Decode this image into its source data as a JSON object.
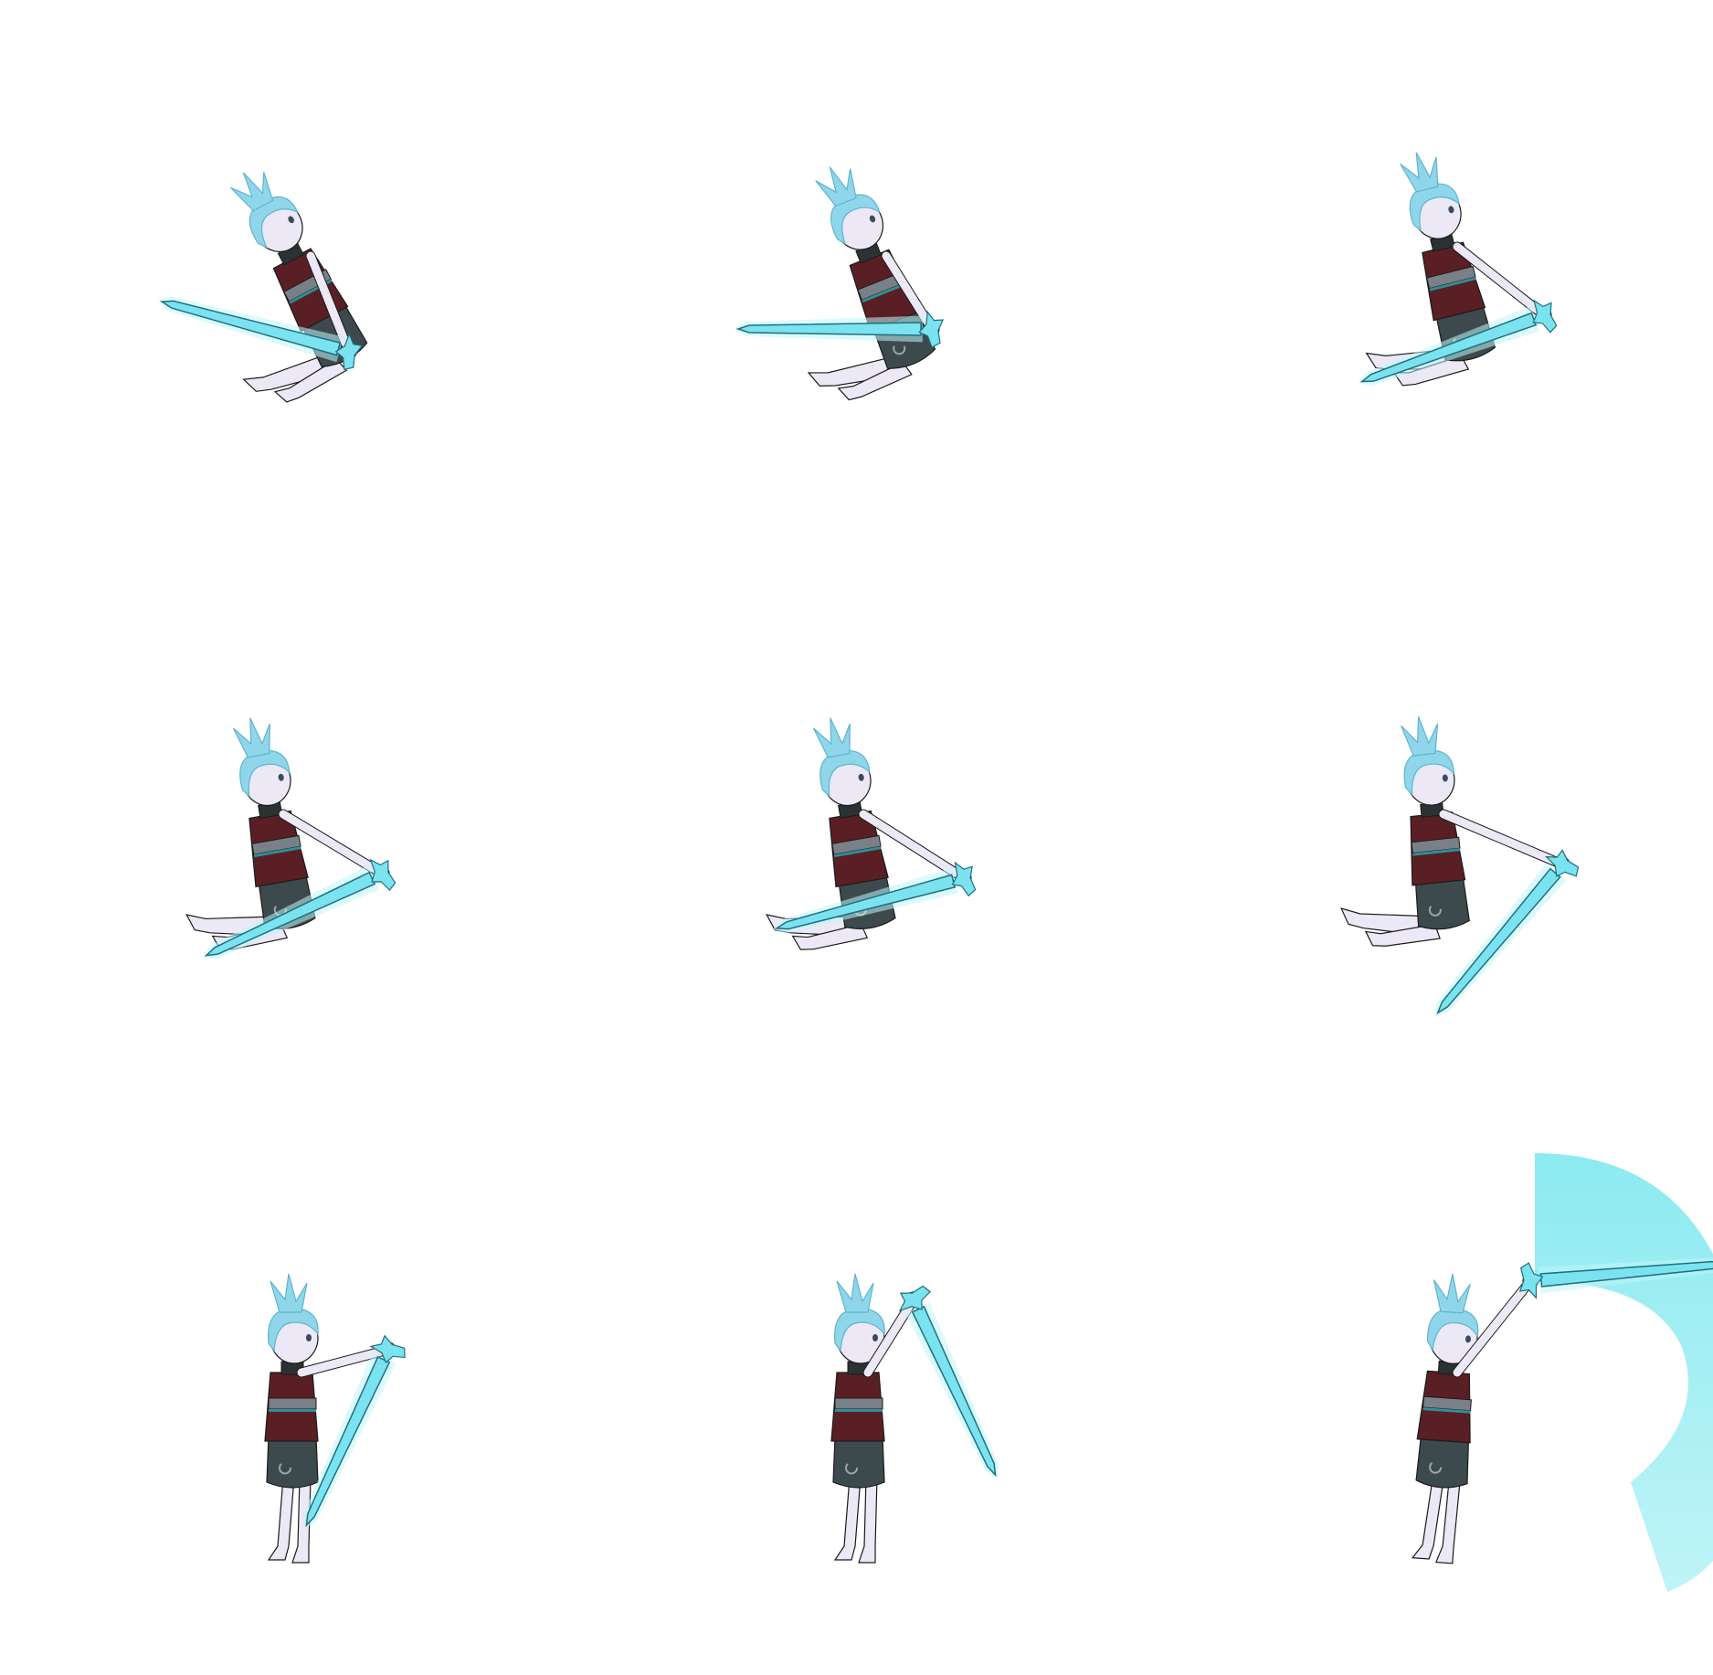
{
  "sprite_sheet": {
    "rows": 3,
    "columns": 3,
    "colors": {
      "background": "#ffffff",
      "hair": "#8fd6ea",
      "hair_dark": "#5fb4cf",
      "skin": "#ece8f6",
      "tunic": "#5a1f24",
      "sash": "#7a8088",
      "sash_stripe": "#2f8f96",
      "pants": "#3d4a4d",
      "collar": "#2b3234",
      "sword": "#7ae3ef",
      "sword_glow": "#bff5fa",
      "sword_edge": "#1f6f80",
      "slash_arc": "#7fe8ef",
      "slash_arc_light": "#b8f3f6",
      "outline": "#1a1a1a"
    },
    "frames": [
      {
        "pose": "hover",
        "sword_angle_deg": 195,
        "slash_effect": false
      },
      {
        "pose": "hover",
        "sword_angle_deg": 180,
        "slash_effect": false
      },
      {
        "pose": "hover",
        "sword_angle_deg": 160,
        "slash_effect": false
      },
      {
        "pose": "hover",
        "sword_angle_deg": 155,
        "slash_effect": false
      },
      {
        "pose": "hover",
        "sword_angle_deg": 165,
        "slash_effect": false
      },
      {
        "pose": "hover",
        "sword_angle_deg": 130,
        "slash_effect": false
      },
      {
        "pose": "upright",
        "sword_angle_deg": 115,
        "slash_effect": false
      },
      {
        "pose": "upright",
        "sword_angle_deg": 65,
        "slash_effect": false
      },
      {
        "pose": "upright",
        "sword_angle_deg": -5,
        "slash_effect": true
      }
    ]
  }
}
